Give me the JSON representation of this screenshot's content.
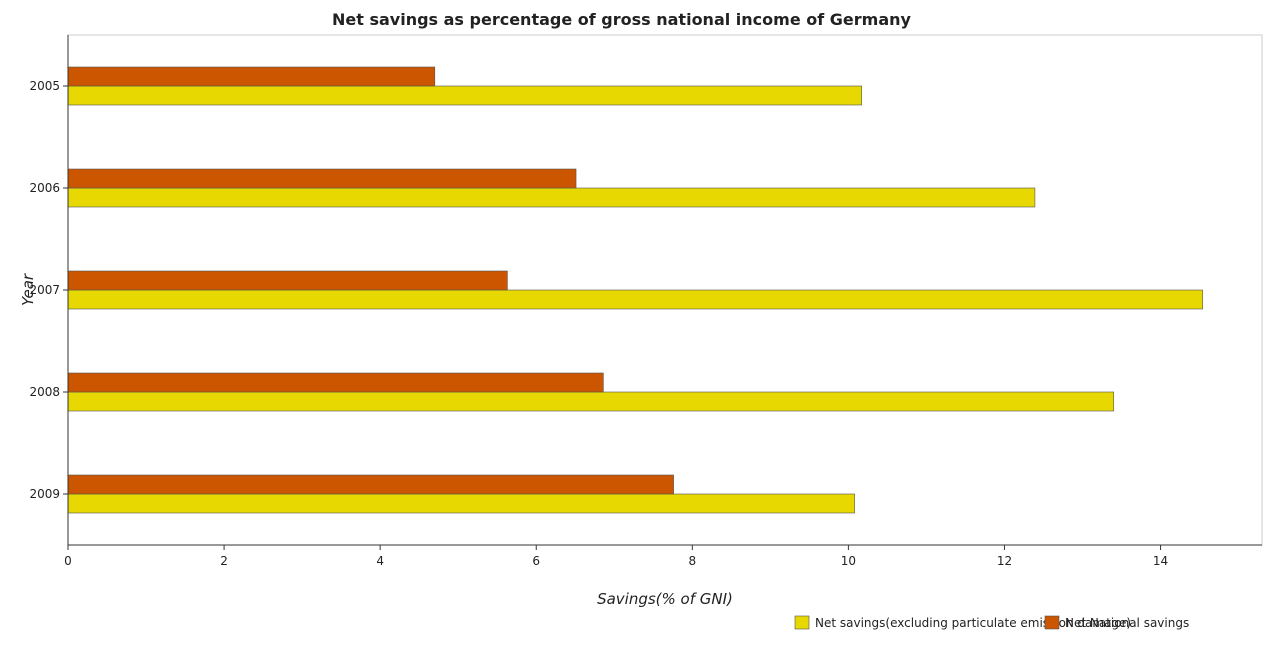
{
  "chart_data": {
    "type": "bar",
    "orientation": "horizontal",
    "title": "Net savings as percentage of gross national income of Germany",
    "xlabel": "Savings(% of GNI)",
    "ylabel": "Year",
    "categories": [
      "2005",
      "2006",
      "2007",
      "2008",
      "2009"
    ],
    "series": [
      {
        "name": "Net savings(excluding particulate emission damage)",
        "color": "#e6d800",
        "values": [
          10.17,
          12.39,
          14.54,
          13.4,
          10.08
        ]
      },
      {
        "name": "Net National savings",
        "color": "#cc5500",
        "values": [
          4.7,
          6.51,
          5.63,
          6.86,
          7.76
        ]
      }
    ],
    "xlim": [
      0,
      15.3
    ],
    "xticks": [
      0,
      2,
      4,
      6,
      8,
      10,
      12,
      14
    ],
    "xtick_labels": [
      "0",
      "2",
      "4",
      "6",
      "8",
      "10",
      "12",
      "14"
    ],
    "grid": false,
    "legend_position": "bottom-right"
  }
}
